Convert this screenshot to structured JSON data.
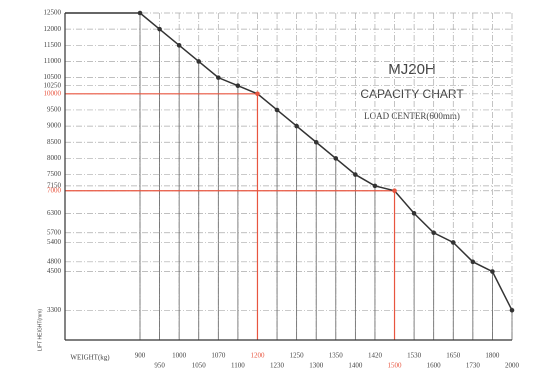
{
  "chart_data": {
    "type": "line",
    "title": "MJ20H",
    "subtitle": "CAPACITY CHART",
    "note": "LOAD CENTER(600mm)",
    "x_label": "WEIGHT(kg)",
    "y_label": "LIFT HEIGHT(mm)",
    "categories": [
      900,
      950,
      1000,
      1050,
      1070,
      1100,
      1200,
      1230,
      1250,
      1300,
      1350,
      1400,
      1420,
      1500,
      1530,
      1600,
      1650,
      1730,
      1800,
      2000
    ],
    "values": [
      12500,
      12000,
      11500,
      11000,
      10500,
      10250,
      10000,
      9500,
      9000,
      8500,
      8000,
      7500,
      7150,
      7000,
      6300,
      5700,
      5400,
      4800,
      4500,
      3300
    ],
    "ylim": [
      3000,
      12500
    ],
    "yticks": [
      12500,
      12000,
      11500,
      11000,
      10500,
      10250,
      10000,
      9500,
      9000,
      8500,
      8000,
      7500,
      7150,
      7000,
      6300,
      5700,
      5400,
      4800,
      4500,
      3300
    ],
    "color": "#333333",
    "highlight_color": "#e8553f",
    "highlight_points": [
      6,
      13
    ],
    "grid": true
  }
}
